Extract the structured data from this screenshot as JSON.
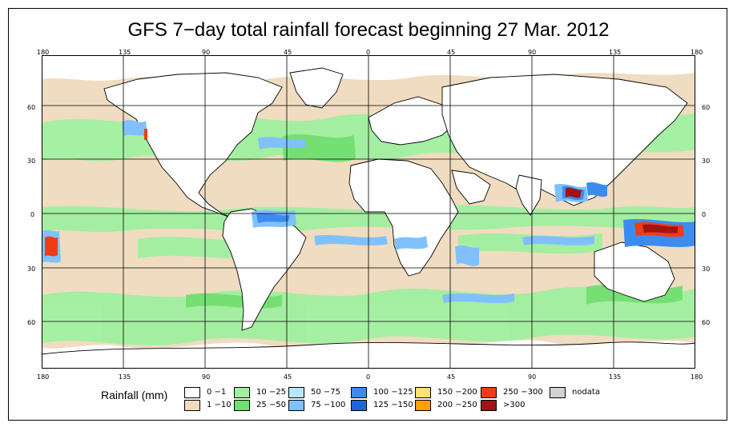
{
  "title": "GFS 7−day total rainfall forecast beginning 27 Mar. 2012",
  "lon_ticks": [
    "180",
    "135",
    "90",
    "45",
    "0",
    "45",
    "90",
    "135",
    "180"
  ],
  "lat_ticks": [
    "60",
    "30",
    "0",
    "30",
    "60"
  ],
  "legend": {
    "title": "Rainfall (mm)",
    "items": [
      {
        "label": "0 −1",
        "color": "#ffffff"
      },
      {
        "label": "1 −10",
        "color": "#f0dcc0"
      },
      {
        "label": "10 −25",
        "color": "#a0f0a0"
      },
      {
        "label": "25 −50",
        "color": "#70e070"
      },
      {
        "label": "50 −75",
        "color": "#b4e8ff"
      },
      {
        "label": "75 −100",
        "color": "#80c0ff"
      },
      {
        "label": "100 −125",
        "color": "#3c8cf0"
      },
      {
        "label": "125 −150",
        "color": "#1e64dc"
      },
      {
        "label": "150 −200",
        "color": "#ffe070"
      },
      {
        "label": "200 −250",
        "color": "#ffa000"
      },
      {
        "label": "250 −300",
        "color": "#f03c14"
      },
      {
        "label": ">300",
        "color": "#a01414"
      },
      {
        "label": "nodata",
        "color": "#d2d2d2"
      }
    ]
  },
  "colors": {
    "land_dry": "#ffffff",
    "light_rain": "#f0dcc0",
    "moderate_rain": "#a0f0a0",
    "heavy_rain": "#70e070",
    "blue_rain": "#80c0ff",
    "extreme": "#a01414",
    "coast": "#000000"
  }
}
